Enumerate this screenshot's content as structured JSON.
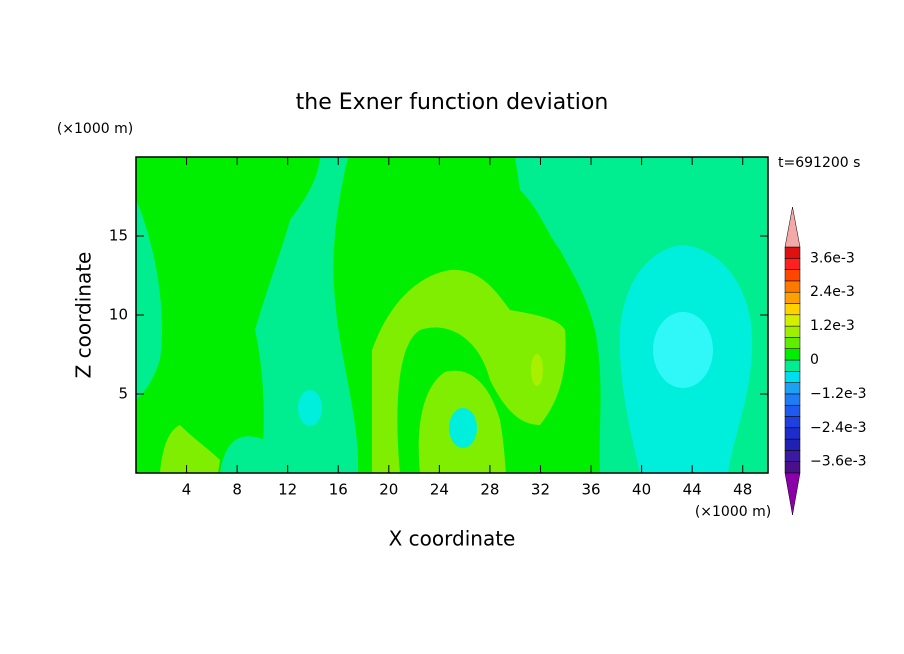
{
  "chart_data": {
    "type": "contour",
    "title": "the Exner function deviation",
    "x_label": "X coordinate",
    "y_label": "Z coordinate",
    "x_unit": "(×1000 m)",
    "y_unit": "(×1000 m)",
    "annotation": "t=691200 s",
    "xlim": [
      0,
      50
    ],
    "xticks": [
      4,
      8,
      12,
      16,
      20,
      24,
      28,
      32,
      36,
      40,
      44,
      48
    ],
    "ylim": [
      0,
      20
    ],
    "yticks": [
      5,
      10,
      15
    ],
    "colorbar": {
      "levels": [
        -0.004,
        -0.0036,
        -0.0032,
        -0.0028,
        -0.0024,
        -0.002,
        -0.0016,
        -0.0012,
        -0.0008,
        -0.0004,
        0,
        0.0004,
        0.0008,
        0.0012,
        0.0016,
        0.002,
        0.0024,
        0.0028,
        0.0032,
        0.0036,
        0.004
      ],
      "colors": [
        "#4b0f8c",
        "#3a1aa0",
        "#2020b4",
        "#1f2ccc",
        "#1e40e0",
        "#1e5af0",
        "#1e7cf5",
        "#1ea0f5",
        "#00dcf0",
        "#00ee90",
        "#00ee00",
        "#60ee00",
        "#a0ee00",
        "#d2f000",
        "#ffd200",
        "#ffa000",
        "#ff7800",
        "#ff4600",
        "#ff2020",
        "#e01010"
      ],
      "under_color": "#8c00aa",
      "over_color": "#f4a8a8",
      "ticks": [
        {
          "value": 0.0036,
          "label": "3.6e-3"
        },
        {
          "value": 0.0024,
          "label": "2.4e-3"
        },
        {
          "value": 0.0012,
          "label": "1.2e-3"
        },
        0,
        {
          "value": -0.0012,
          "label": "−1.2e-3"
        },
        {
          "value": -0.0024,
          "label": "−2.4e-3"
        },
        {
          "value": -0.0036,
          "label": "−3.6e-3"
        }
      ]
    }
  }
}
